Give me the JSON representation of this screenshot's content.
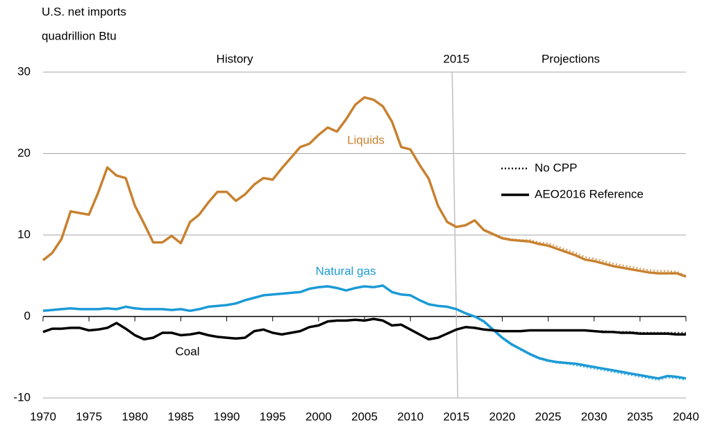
{
  "chart_data": {
    "type": "line",
    "title": "U.S. net imports",
    "subtitle": "quadrillion Btu",
    "annotations": [
      "History",
      "Projections"
    ],
    "divider_x": 2015,
    "xlim": [
      1970,
      2040
    ],
    "xticks": [
      1970,
      1975,
      1980,
      1985,
      1990,
      1995,
      2000,
      2005,
      2010,
      2015,
      2020,
      2025,
      2030,
      2035,
      2040
    ],
    "ylim": [
      -10,
      30
    ],
    "yticks": [
      -10,
      0,
      10,
      20,
      30
    ],
    "grid": true,
    "legend": [
      {
        "label": "No CPP",
        "style": "dotted"
      },
      {
        "label": "AEO2016 Reference",
        "style": "solid"
      }
    ],
    "x": [
      1970,
      1971,
      1972,
      1973,
      1974,
      1975,
      1976,
      1977,
      1978,
      1979,
      1980,
      1981,
      1982,
      1983,
      1984,
      1985,
      1986,
      1987,
      1988,
      1989,
      1990,
      1991,
      1992,
      1993,
      1994,
      1995,
      1996,
      1997,
      1998,
      1999,
      2000,
      2001,
      2002,
      2003,
      2004,
      2005,
      2006,
      2007,
      2008,
      2009,
      2010,
      2011,
      2012,
      2013,
      2014,
      2015,
      2016,
      2017,
      2018,
      2019,
      2020,
      2021,
      2022,
      2023,
      2024,
      2025,
      2026,
      2027,
      2028,
      2029,
      2030,
      2031,
      2032,
      2033,
      2034,
      2035,
      2036,
      2037,
      2038,
      2039,
      2040
    ],
    "series": [
      {
        "name": "Liquids",
        "color": "#c8812f",
        "reference": [
          6.9,
          7.8,
          9.5,
          12.9,
          12.7,
          12.5,
          15.2,
          18.3,
          17.3,
          17.0,
          13.6,
          11.4,
          9.1,
          9.1,
          9.9,
          9.0,
          11.6,
          12.5,
          14.0,
          15.3,
          15.3,
          14.2,
          15.0,
          16.2,
          17.0,
          16.8,
          18.2,
          19.5,
          20.8,
          21.2,
          22.3,
          23.2,
          22.7,
          24.2,
          26.0,
          26.9,
          26.6,
          25.8,
          23.9,
          20.8,
          20.5,
          18.6,
          16.9,
          13.6,
          11.6,
          11.0,
          11.2,
          11.8,
          10.6,
          10.1,
          9.6,
          9.4,
          9.3,
          9.2,
          8.9,
          8.7,
          8.3,
          7.9,
          7.5,
          7.0,
          6.8,
          6.5,
          6.2,
          6.0,
          5.8,
          5.6,
          5.4,
          5.3,
          5.3,
          5.3,
          4.9
        ],
        "no_cpp": [
          null,
          null,
          null,
          null,
          null,
          null,
          null,
          null,
          null,
          null,
          null,
          null,
          null,
          null,
          null,
          null,
          null,
          null,
          null,
          null,
          null,
          null,
          null,
          null,
          null,
          null,
          null,
          null,
          null,
          null,
          null,
          null,
          null,
          null,
          null,
          null,
          null,
          null,
          null,
          null,
          null,
          null,
          null,
          null,
          null,
          11.0,
          11.2,
          11.8,
          10.7,
          10.2,
          9.7,
          9.5,
          9.4,
          9.4,
          9.1,
          9.0,
          8.6,
          8.2,
          7.8,
          7.3,
          7.1,
          6.8,
          6.5,
          6.3,
          6.1,
          5.9,
          5.7,
          5.6,
          5.6,
          5.5,
          5.0
        ]
      },
      {
        "name": "Natural gas",
        "color": "#1b9ad6",
        "reference": [
          0.7,
          0.8,
          0.9,
          1.0,
          0.9,
          0.9,
          0.9,
          1.0,
          0.9,
          1.2,
          1.0,
          0.9,
          0.9,
          0.9,
          0.8,
          0.9,
          0.7,
          0.9,
          1.2,
          1.3,
          1.4,
          1.6,
          2.0,
          2.3,
          2.6,
          2.7,
          2.8,
          2.9,
          3.0,
          3.4,
          3.6,
          3.7,
          3.5,
          3.2,
          3.5,
          3.7,
          3.6,
          3.8,
          3.0,
          2.7,
          2.6,
          2.0,
          1.5,
          1.3,
          1.2,
          0.9,
          0.4,
          0.0,
          -0.6,
          -1.6,
          -2.6,
          -3.4,
          -4.0,
          -4.6,
          -5.1,
          -5.4,
          -5.6,
          -5.7,
          -5.8,
          -6.0,
          -6.2,
          -6.4,
          -6.6,
          -6.8,
          -7.0,
          -7.2,
          -7.4,
          -7.6,
          -7.3,
          -7.4,
          -7.6
        ],
        "no_cpp": [
          null,
          null,
          null,
          null,
          null,
          null,
          null,
          null,
          null,
          null,
          null,
          null,
          null,
          null,
          null,
          null,
          null,
          null,
          null,
          null,
          null,
          null,
          null,
          null,
          null,
          null,
          null,
          null,
          null,
          null,
          null,
          null,
          null,
          null,
          null,
          null,
          null,
          null,
          null,
          null,
          null,
          null,
          null,
          null,
          null,
          0.9,
          0.4,
          0.0,
          -0.7,
          -1.7,
          -2.7,
          -3.5,
          -4.1,
          -4.7,
          -5.2,
          -5.5,
          -5.7,
          -5.8,
          -6.0,
          -6.2,
          -6.4,
          -6.6,
          -6.8,
          -7.0,
          -7.2,
          -7.4,
          -7.6,
          -7.8,
          -7.5,
          -7.6,
          -7.8
        ]
      },
      {
        "name": "Coal",
        "color": "#000000",
        "reference": [
          -1.9,
          -1.5,
          -1.5,
          -1.4,
          -1.4,
          -1.7,
          -1.6,
          -1.4,
          -0.8,
          -1.5,
          -2.3,
          -2.8,
          -2.6,
          -2.0,
          -2.0,
          -2.3,
          -2.2,
          -2.0,
          -2.3,
          -2.5,
          -2.6,
          -2.7,
          -2.6,
          -1.8,
          -1.6,
          -2.0,
          -2.2,
          -2.0,
          -1.8,
          -1.3,
          -1.1,
          -0.6,
          -0.5,
          -0.5,
          -0.4,
          -0.5,
          -0.3,
          -0.5,
          -1.1,
          -1.0,
          -1.6,
          -2.2,
          -2.8,
          -2.6,
          -2.1,
          -1.6,
          -1.3,
          -1.4,
          -1.6,
          -1.7,
          -1.8,
          -1.8,
          -1.8,
          -1.7,
          -1.7,
          -1.7,
          -1.7,
          -1.7,
          -1.7,
          -1.7,
          -1.8,
          -1.9,
          -1.9,
          -2.0,
          -2.0,
          -2.1,
          -2.1,
          -2.1,
          -2.1,
          -2.2,
          -2.2
        ],
        "no_cpp": [
          null,
          null,
          null,
          null,
          null,
          null,
          null,
          null,
          null,
          null,
          null,
          null,
          null,
          null,
          null,
          null,
          null,
          null,
          null,
          null,
          null,
          null,
          null,
          null,
          null,
          null,
          null,
          null,
          null,
          null,
          null,
          null,
          null,
          null,
          null,
          null,
          null,
          null,
          null,
          null,
          null,
          null,
          null,
          null,
          null,
          -1.6,
          -1.3,
          -1.4,
          -1.6,
          -1.7,
          -1.8,
          -1.8,
          -1.8,
          -1.7,
          -1.7,
          -1.7,
          -1.7,
          -1.7,
          -1.7,
          -1.7,
          -1.8,
          -1.8,
          -1.9,
          -1.9,
          -1.9,
          -2.0,
          -2.0,
          -2.0,
          -2.0,
          -2.0,
          -2.0
        ]
      }
    ]
  }
}
